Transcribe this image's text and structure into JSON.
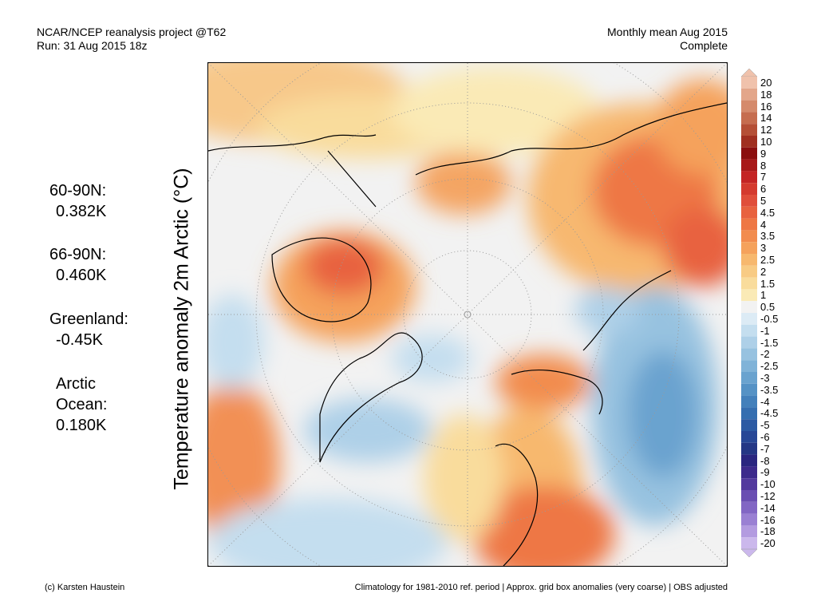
{
  "header": {
    "line1_left": "NCAR/NCEP reanalysis project @T62",
    "line2_left": "Run: 31 Aug 2015 18z",
    "line1_right": "Monthly mean Aug 2015",
    "line2_right": "Complete"
  },
  "axis_label": "Temperature anomaly 2m Arctic (°C)",
  "stats": [
    {
      "label": "60-90N:",
      "value": "0.382K"
    },
    {
      "label": "66-90N:",
      "value": "0.460K"
    },
    {
      "label": "Greenland:",
      "value": "-0.45K"
    },
    {
      "label_lines": [
        "Arctic",
        "Ocean:"
      ],
      "value": "0.180K"
    }
  ],
  "colorbar": {
    "labels": [
      "20",
      "18",
      "16",
      "14",
      "12",
      "10",
      "9",
      "8",
      "7",
      "6",
      "5",
      "4.5",
      "4",
      "3.5",
      "3",
      "2.5",
      "2",
      "1.5",
      "1",
      "0.5",
      "-0.5",
      "-1",
      "-1.5",
      "-2",
      "-2.5",
      "-3",
      "-3.5",
      "-4",
      "-4.5",
      "-5",
      "-6",
      "-7",
      "-8",
      "-9",
      "-10",
      "-12",
      "-14",
      "-16",
      "-18",
      "-20"
    ],
    "colors": [
      "#f0c2ac",
      "#e3a68a",
      "#d58a6b",
      "#c66d4f",
      "#b54f36",
      "#a02f20",
      "#8b0f0f",
      "#a81818",
      "#c42424",
      "#d43a2e",
      "#e04e3a",
      "#e8623f",
      "#ee7745",
      "#f28c4e",
      "#f5a25c",
      "#f7b86e",
      "#f8cb84",
      "#f9dc9c",
      "#faeab6",
      "#f2f2f2",
      "#dcebf5",
      "#c4deef",
      "#aed0e8",
      "#97c2e0",
      "#80b3d8",
      "#6aa3cf",
      "#5592c5",
      "#4380bb",
      "#356eb0",
      "#2c5aa3",
      "#274796",
      "#243785",
      "#2a2680",
      "#3d2a8c",
      "#533a9e",
      "#6a4eb2",
      "#8266c4",
      "#9a80d3",
      "#b39be0",
      "#cbb8ec"
    ]
  },
  "footer": {
    "left": "(c) Karsten Haustein",
    "right": "Climatology for 1981-2010 ref. period | Approx. grid box anomalies (very coarse) | OBS adjusted"
  }
}
